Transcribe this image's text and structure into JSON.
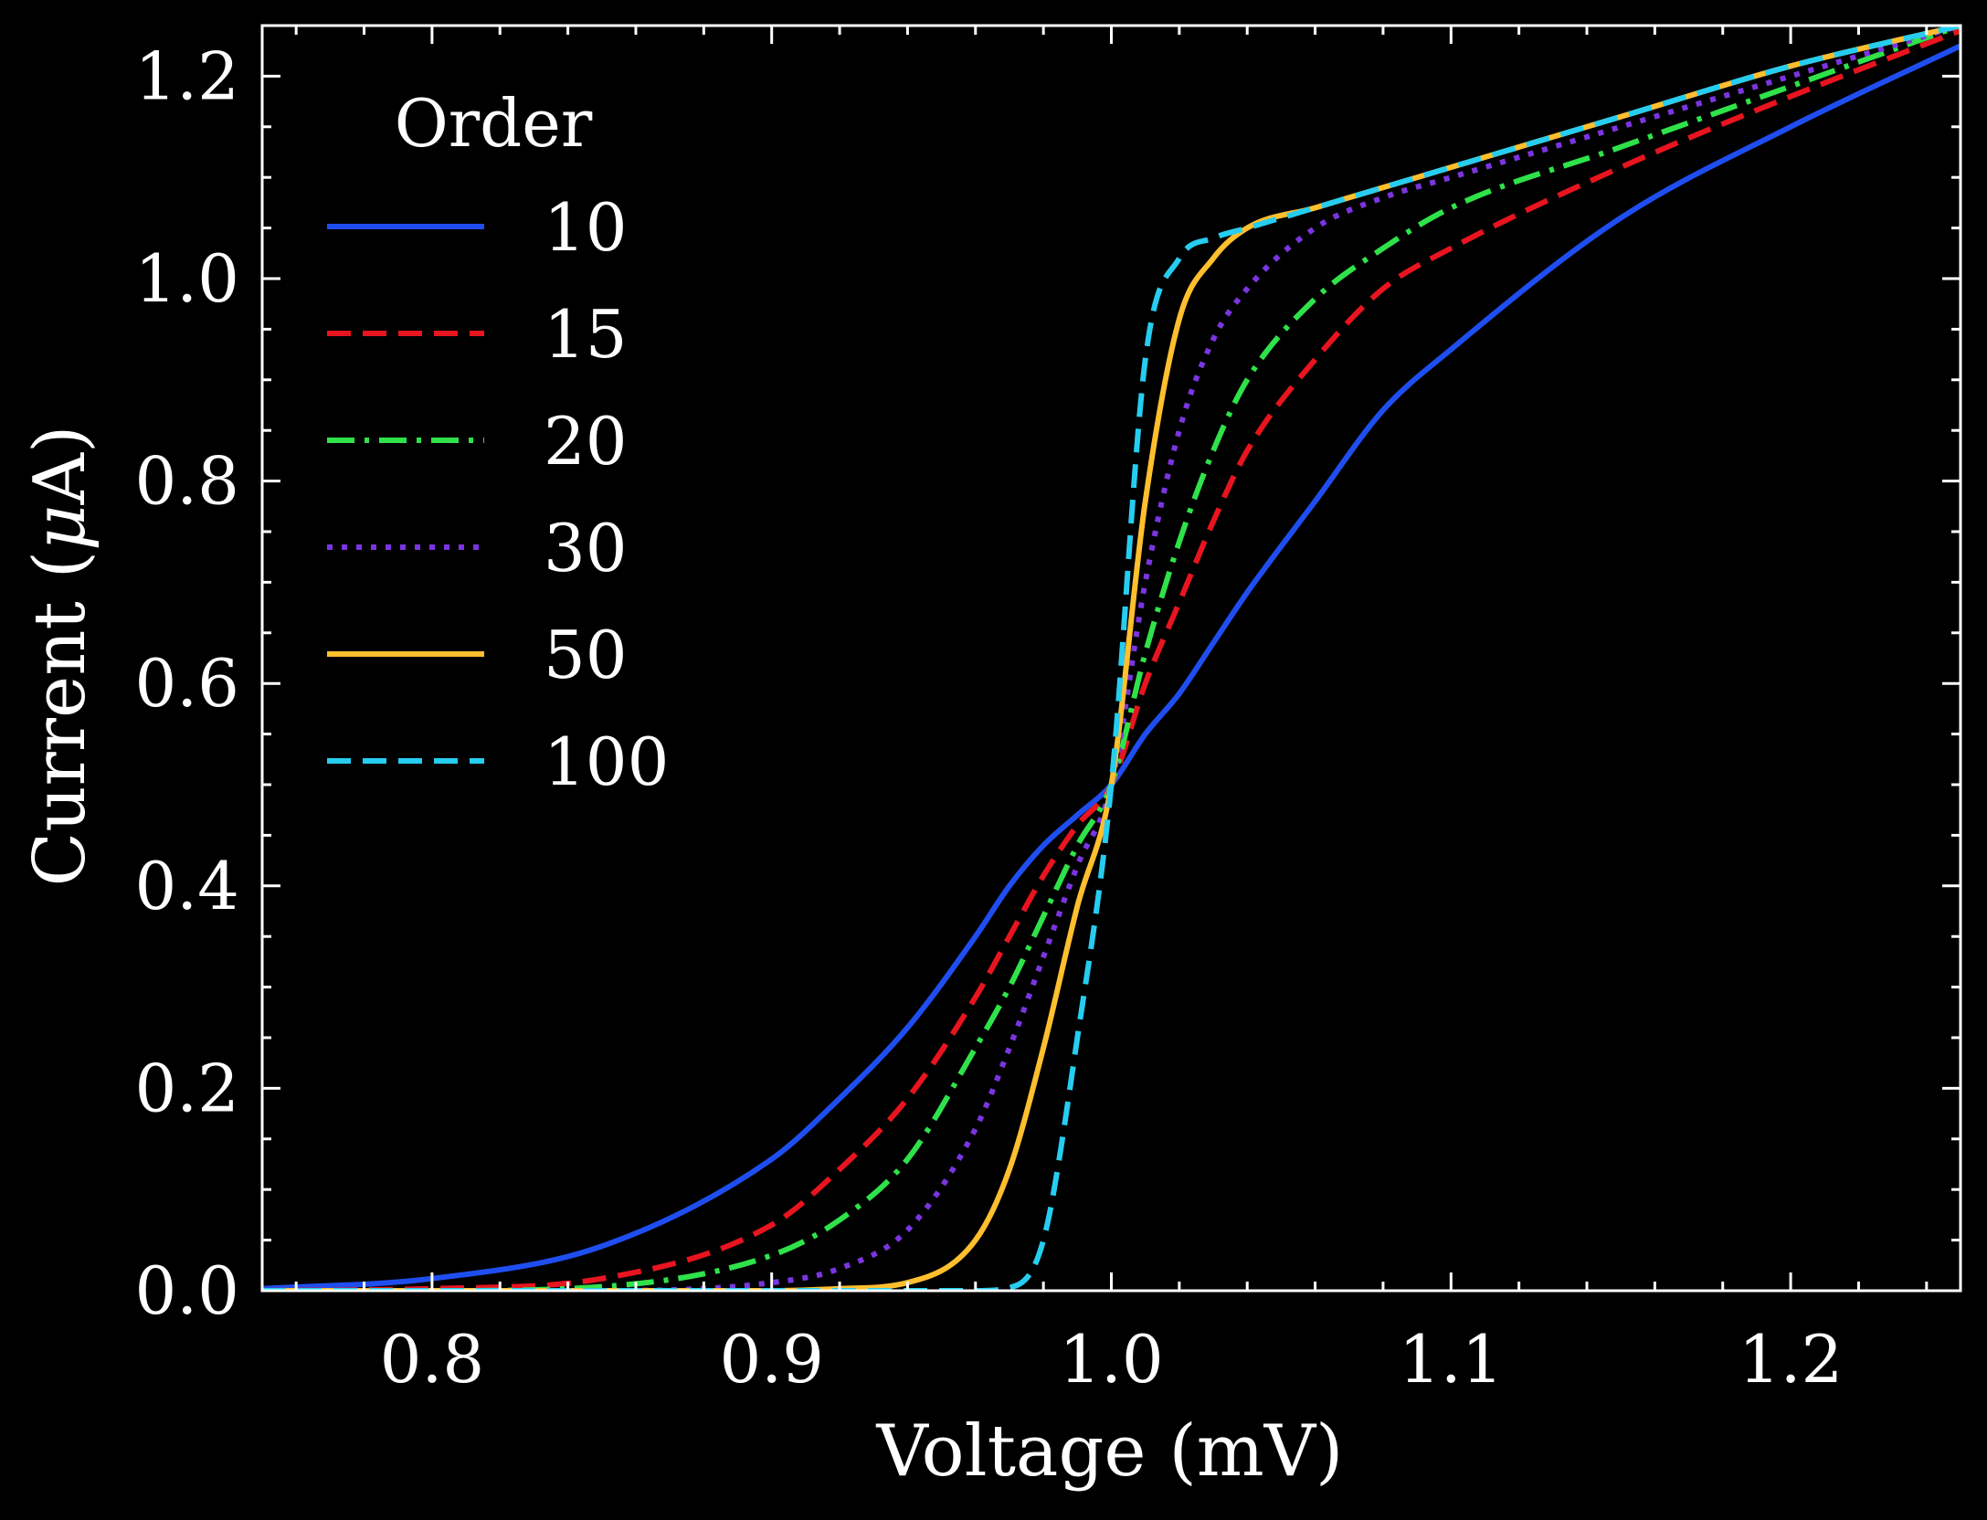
{
  "chart_data": {
    "type": "line",
    "xlabel": "Voltage (mV)",
    "ylabel_prefix": "Current (",
    "ylabel_symbol": "μ",
    "ylabel_suffix": "A)",
    "xlim": [
      0.75,
      1.25
    ],
    "ylim": [
      0.0,
      1.25
    ],
    "x_ticks": [
      {
        "value": 0.8,
        "label": "0.8"
      },
      {
        "value": 0.9,
        "label": "0.9"
      },
      {
        "value": 1.0,
        "label": "1.0"
      },
      {
        "value": 1.1,
        "label": "1.1"
      },
      {
        "value": 1.2,
        "label": "1.2"
      }
    ],
    "y_ticks": [
      {
        "value": 0.0,
        "label": "0.0"
      },
      {
        "value": 0.2,
        "label": "0.2"
      },
      {
        "value": 0.4,
        "label": "0.4"
      },
      {
        "value": 0.6,
        "label": "0.6"
      },
      {
        "value": 0.8,
        "label": "0.8"
      },
      {
        "value": 1.0,
        "label": "1.0"
      },
      {
        "value": 1.2,
        "label": "1.2"
      }
    ],
    "x_minor_step": 0.02,
    "y_minor_step": 0.05,
    "grid": false,
    "legend": {
      "title": "Order",
      "position": "top-left"
    },
    "x": [
      0.75,
      0.8,
      0.85,
      0.9,
      0.92,
      0.94,
      0.96,
      0.97,
      0.98,
      0.99,
      1.0,
      1.01,
      1.02,
      1.03,
      1.04,
      1.06,
      1.08,
      1.1,
      1.15,
      1.2,
      1.25
    ],
    "series": [
      {
        "name": "10",
        "color": "#1f4ef0",
        "dash": "solid",
        "values": [
          0.002,
          0.012,
          0.044,
          0.13,
          0.19,
          0.26,
          0.35,
          0.4,
          0.44,
          0.47,
          0.5,
          0.55,
          0.59,
          0.64,
          0.69,
          0.78,
          0.87,
          0.93,
          1.06,
          1.15,
          1.23
        ]
      },
      {
        "name": "15",
        "color": "#e8141f",
        "dash": "dashed",
        "values": [
          0.0,
          0.002,
          0.012,
          0.065,
          0.12,
          0.19,
          0.29,
          0.35,
          0.41,
          0.46,
          0.5,
          0.6,
          0.68,
          0.76,
          0.83,
          0.92,
          0.99,
          1.03,
          1.11,
          1.18,
          1.245
        ]
      },
      {
        "name": "20",
        "color": "#2fe24a",
        "dash": "dashdot",
        "values": [
          0.0,
          0.0,
          0.004,
          0.035,
          0.07,
          0.13,
          0.24,
          0.3,
          0.37,
          0.44,
          0.5,
          0.63,
          0.74,
          0.83,
          0.9,
          0.98,
          1.03,
          1.07,
          1.13,
          1.19,
          1.25
        ]
      },
      {
        "name": "30",
        "color": "#7b35e0",
        "dash": "dotted",
        "values": [
          0.0,
          0.0,
          0.0,
          0.008,
          0.022,
          0.06,
          0.16,
          0.24,
          0.33,
          0.42,
          0.5,
          0.7,
          0.85,
          0.94,
          0.99,
          1.05,
          1.08,
          1.1,
          1.15,
          1.2,
          1.25
        ]
      },
      {
        "name": "50",
        "color": "#ffbf2e",
        "dash": "solid",
        "values": [
          0.0,
          0.0,
          0.0,
          0.0,
          0.002,
          0.008,
          0.05,
          0.12,
          0.24,
          0.38,
          0.5,
          0.78,
          0.96,
          1.02,
          1.05,
          1.07,
          1.09,
          1.11,
          1.16,
          1.21,
          1.25
        ]
      },
      {
        "name": "100",
        "color": "#26cdf0",
        "dash": "dashed",
        "values": [
          0.0,
          0.0,
          0.0,
          0.0,
          0.0,
          0.0,
          0.0,
          0.003,
          0.05,
          0.25,
          0.5,
          0.92,
          1.02,
          1.04,
          1.05,
          1.07,
          1.09,
          1.11,
          1.16,
          1.21,
          1.25
        ]
      }
    ]
  }
}
